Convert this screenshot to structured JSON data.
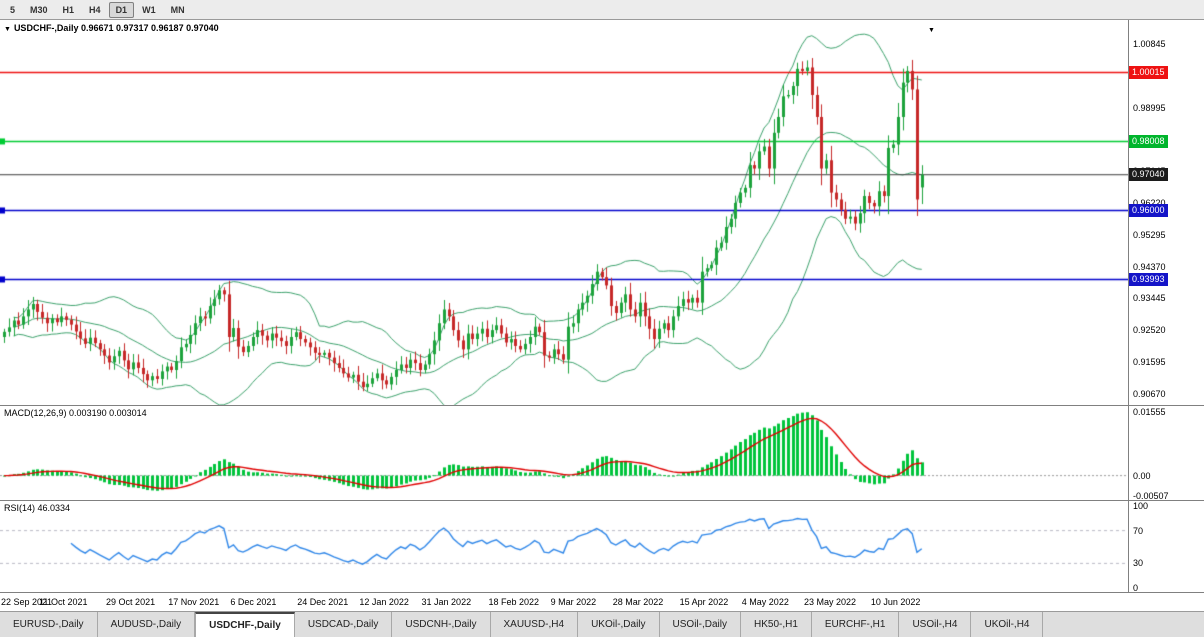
{
  "toolbar": {
    "timeframes": [
      {
        "label": "5",
        "active": false
      },
      {
        "label": "M30",
        "active": false
      },
      {
        "label": "H1",
        "active": false
      },
      {
        "label": "H4",
        "active": false
      },
      {
        "label": "D1",
        "active": true
      },
      {
        "label": "W1",
        "active": false
      },
      {
        "label": "MN",
        "active": false
      }
    ]
  },
  "main_chart": {
    "title": "USDCHF-,Daily",
    "ohlc_text": "0.96671 0.97317 0.96187 0.97040"
  },
  "macd_panel": {
    "label": "MACD(12,26,9)",
    "values_text": "0.003190 0.003014"
  },
  "rsi_panel": {
    "label": "RSI(14)",
    "value_text": "46.0334"
  },
  "colors": {
    "candle_up": "#1da33c",
    "candle_down": "#c62828",
    "bollinger": "#3aa06a",
    "macd_bar": "#00c43c",
    "macd_signal": "#e00000",
    "rsi_line": "#2e86e8",
    "level_dash": "#b8b8c4",
    "line_red": "#ff0000",
    "line_green": "#00cc33",
    "line_black": "#3a3a3a",
    "line_blue": "#0000cc"
  },
  "chart_data": {
    "type": "candlestick",
    "symbol": "USDCHF-",
    "timeframe": "Daily",
    "last_ohlc": {
      "open": 0.96671,
      "high": 0.97317,
      "low": 0.96187,
      "close": 0.9704
    },
    "closes": [
      0.9247,
      0.926,
      0.928,
      0.9268,
      0.9292,
      0.9312,
      0.9328,
      0.9305,
      0.9288,
      0.9272,
      0.9286,
      0.9275,
      0.9292,
      0.9282,
      0.9268,
      0.9248,
      0.9228,
      0.9212,
      0.923,
      0.9214,
      0.9196,
      0.9178,
      0.9158,
      0.9176,
      0.9192,
      0.9164,
      0.9138,
      0.9158,
      0.9142,
      0.9124,
      0.9106,
      0.9118,
      0.911,
      0.9132,
      0.9146,
      0.9136,
      0.9162,
      0.9202,
      0.9212,
      0.9238,
      0.9272,
      0.9292,
      0.9286,
      0.9322,
      0.9342,
      0.9368,
      0.9356,
      0.9232,
      0.9258,
      0.9204,
      0.9188,
      0.9206,
      0.9232,
      0.9252,
      0.9236,
      0.9222,
      0.9242,
      0.923,
      0.922,
      0.9206,
      0.9232,
      0.9246,
      0.9226,
      0.9216,
      0.9202,
      0.9186,
      0.918,
      0.9186,
      0.9172,
      0.9156,
      0.9142,
      0.9126,
      0.9114,
      0.9122,
      0.9102,
      0.9086,
      0.9096,
      0.9112,
      0.9126,
      0.9106,
      0.9094,
      0.9116,
      0.9136,
      0.9152,
      0.9142,
      0.9166,
      0.9156,
      0.9136,
      0.9152,
      0.9182,
      0.9222,
      0.9272,
      0.9312,
      0.9292,
      0.9252,
      0.9222,
      0.9196,
      0.9242,
      0.9226,
      0.9242,
      0.9256,
      0.9232,
      0.9252,
      0.9266,
      0.9242,
      0.9216,
      0.9226,
      0.9206,
      0.9196,
      0.9212,
      0.9232,
      0.9262,
      0.9246,
      0.9178,
      0.9172,
      0.9196,
      0.9182,
      0.9166,
      0.9262,
      0.9272,
      0.9312,
      0.9332,
      0.9352,
      0.9386,
      0.9422,
      0.9406,
      0.9382,
      0.9322,
      0.9302,
      0.9332,
      0.9356,
      0.9312,
      0.9292,
      0.9332,
      0.9292,
      0.9256,
      0.9226,
      0.9256,
      0.9272,
      0.9252,
      0.9292,
      0.9322,
      0.9342,
      0.9332,
      0.9346,
      0.9332,
      0.9422,
      0.9432,
      0.9442,
      0.9492,
      0.9506,
      0.9552,
      0.9576,
      0.9622,
      0.9652,
      0.9666,
      0.9732,
      0.9722,
      0.9772,
      0.9786,
      0.9722,
      0.9826,
      0.9872,
      0.9932,
      0.9936,
      0.9962,
      1.0012,
      1.0006,
      1.0016,
      0.9936,
      0.9872,
      0.9722,
      0.9746,
      0.9652,
      0.9632,
      0.9602,
      0.9576,
      0.9582,
      0.9562,
      0.9592,
      0.9642,
      0.9622,
      0.9612,
      0.9656,
      0.9642,
      0.9782,
      0.9792,
      0.9872,
      0.9972,
      1.0006,
      0.9952,
      0.9632,
      0.9704
    ],
    "x_labels": [
      {
        "text": "22 Sep 2021",
        "index": 0
      },
      {
        "text": "11 Oct 2021",
        "index": 13
      },
      {
        "text": "29 Oct 2021",
        "index": 27
      },
      {
        "text": "17 Nov 2021",
        "index": 40
      },
      {
        "text": "6 Dec 2021",
        "index": 53
      },
      {
        "text": "24 Dec 2021",
        "index": 67
      },
      {
        "text": "12 Jan 2022",
        "index": 80
      },
      {
        "text": "31 Jan 2022",
        "index": 93
      },
      {
        "text": "18 Feb 2022",
        "index": 107
      },
      {
        "text": "9 Mar 2022",
        "index": 120
      },
      {
        "text": "28 Mar 2022",
        "index": 133
      },
      {
        "text": "15 Apr 2022",
        "index": 147
      },
      {
        "text": "4 May 2022",
        "index": 160
      },
      {
        "text": "23 May 2022",
        "index": 173
      },
      {
        "text": "10 Jun 2022",
        "index": 187
      }
    ],
    "y_axis": {
      "ticks": [
        {
          "label": "1.00845",
          "price": 1.00845
        },
        {
          "label": "0.99920",
          "price": 0.9992
        },
        {
          "label": "0.98995",
          "price": 0.98995
        },
        {
          "label": "0.98070",
          "price": 0.9807
        },
        {
          "label": "0.97145",
          "price": 0.97145
        },
        {
          "label": "0.96220",
          "price": 0.9622
        },
        {
          "label": "0.95295",
          "price": 0.95295
        },
        {
          "label": "0.94370",
          "price": 0.9437
        },
        {
          "label": "0.93445",
          "price": 0.93445
        },
        {
          "label": "0.92520",
          "price": 0.9252
        },
        {
          "label": "0.91595",
          "price": 0.91595
        },
        {
          "label": "0.90670",
          "price": 0.9067
        }
      ]
    },
    "price_lines": [
      {
        "label": "1.00015",
        "price": 1.00015,
        "color": "#ee1111",
        "badge": "#ee1111"
      },
      {
        "label": "0.98008",
        "price": 0.98008,
        "color": "#00cc33",
        "badge": "#00b52c"
      },
      {
        "label": "0.97040",
        "price": 0.9704,
        "color": "#3a3a3a",
        "badge": "#1c1c1c"
      },
      {
        "label": "0.96000",
        "price": 0.96,
        "color": "#0000cc",
        "badge": "#1414c8"
      },
      {
        "label": "0.93993",
        "price": 0.93993,
        "color": "#0000cc",
        "badge": "#1414c8"
      }
    ],
    "macd": {
      "fast": 12,
      "slow": 26,
      "signal": 9,
      "ticks": [
        {
          "label": "0.01555",
          "value": 0.01555
        },
        {
          "label": "0.00",
          "value": 0
        },
        {
          "label": "-0.00507",
          "value": -0.00507
        }
      ]
    },
    "rsi": {
      "period": 14,
      "levels": [
        70,
        30
      ],
      "ticks": [
        {
          "label": "100",
          "value": 100
        },
        {
          "label": "70",
          "value": 70
        },
        {
          "label": "30",
          "value": 30
        },
        {
          "label": "0",
          "value": 0
        }
      ]
    },
    "bollinger": {
      "period": 20,
      "deviation": 2
    }
  },
  "tabs": [
    {
      "label": "EURUSD-,Daily",
      "active": false
    },
    {
      "label": "AUDUSD-,Daily",
      "active": false
    },
    {
      "label": "USDCHF-,Daily",
      "active": true
    },
    {
      "label": "USDCAD-,Daily",
      "active": false
    },
    {
      "label": "USDCNH-,Daily",
      "active": false
    },
    {
      "label": "XAUUSD-,H4",
      "active": false
    },
    {
      "label": "UKOil-,Daily",
      "active": false
    },
    {
      "label": "USOil-,Daily",
      "active": false
    },
    {
      "label": "HK50-,H1",
      "active": false
    },
    {
      "label": "EURCHF-,H1",
      "active": false
    },
    {
      "label": "USOil-,H4",
      "active": false
    },
    {
      "label": "UKOil-,H4",
      "active": false
    }
  ]
}
